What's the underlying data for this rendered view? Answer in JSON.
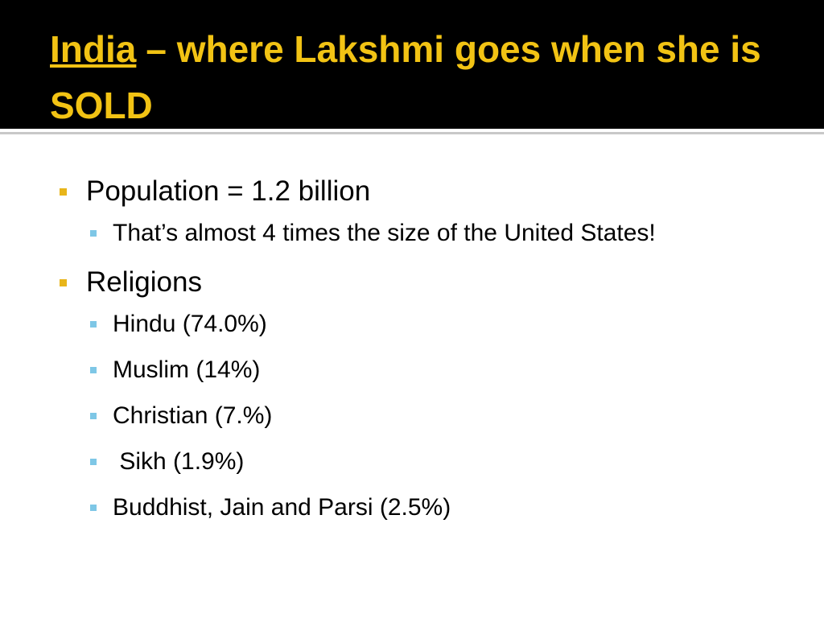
{
  "title": {
    "link": "India",
    "rest": "– where Lakshmi goes when she is SOLD"
  },
  "bullets": [
    {
      "text": "Population = 1.2 billion",
      "subitems": [
        "That’s almost 4 times the size of the United States!"
      ]
    },
    {
      "text": "Religions",
      "subitems": [
        "Hindu (74.0%)",
        "Muslim (14%)",
        "Christian (7.%)",
        " Sikh (1.9%)",
        "Buddhist, Jain and Parsi (2.5%)"
      ]
    }
  ]
}
